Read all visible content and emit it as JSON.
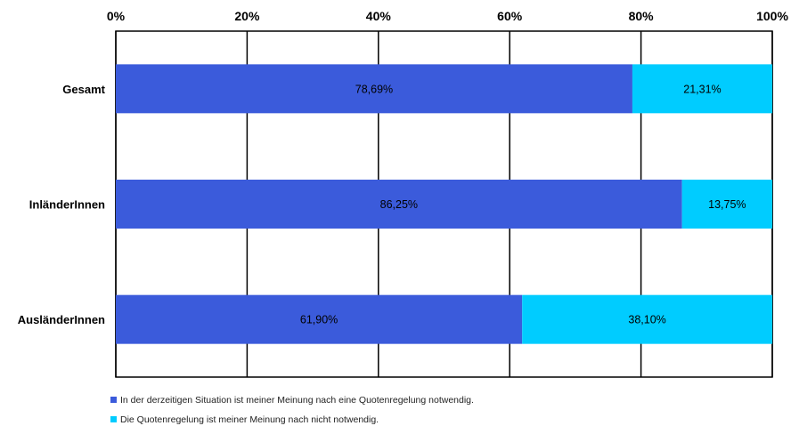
{
  "chart_data": {
    "type": "bar",
    "orientation": "horizontal",
    "stacked": true,
    "normalized": true,
    "categories": [
      "Gesamt",
      "InländerInnen",
      "AusländerInnen"
    ],
    "series": [
      {
        "name": "In der derzeitigen Situation ist meiner Meinung nach eine Quotenregelung notwendig.",
        "color": "#3b5bdb",
        "values": [
          78.69,
          86.25,
          61.9
        ],
        "labels": [
          "78,69%",
          "86,25%",
          "61,90%"
        ]
      },
      {
        "name": "Die Quotenregelung ist meiner Meinung nach nicht notwendig.",
        "color": "#00ccff",
        "values": [
          21.31,
          13.75,
          38.1
        ],
        "labels": [
          "21,31%",
          "13,75%",
          "38,10%"
        ]
      }
    ],
    "x_ticks": [
      "0%",
      "20%",
      "40%",
      "60%",
      "80%",
      "100%"
    ],
    "xlim": [
      0,
      100
    ],
    "x_axis_position": "top",
    "grid": true,
    "legend_position": "bottom-left",
    "title": "",
    "xlabel": "",
    "ylabel": ""
  }
}
